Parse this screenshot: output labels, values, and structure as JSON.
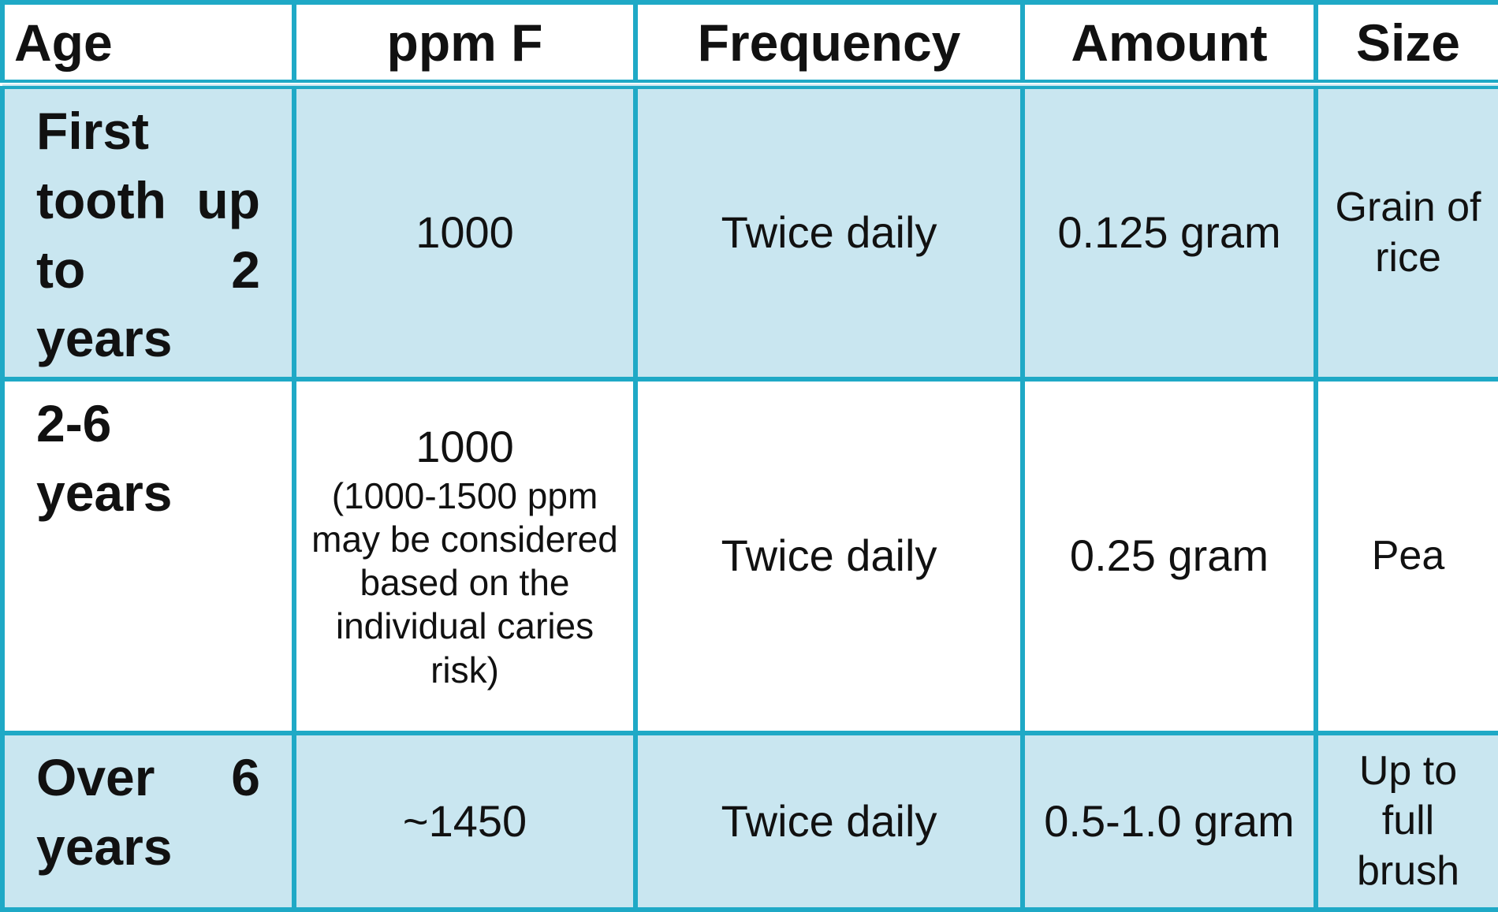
{
  "table": {
    "header": [
      "Age",
      "ppm F",
      "Frequency",
      "Amount",
      "Size"
    ],
    "rows": [
      [
        "First tooth up to 2 years",
        "1000",
        "Twice daily",
        "0.125 gram",
        "Grain of rice"
      ],
      [
        "2-6 years",
        [
          "1000",
          "(1000-1500 ppm may be considered based on the individual caries risk)"
        ],
        "Twice daily",
        "0.25 gram",
        "Pea"
      ],
      [
        "Over 6 years",
        "~1450",
        "Twice daily",
        "0.5-1.0 gram",
        "Up to full brush"
      ]
    ]
  }
}
